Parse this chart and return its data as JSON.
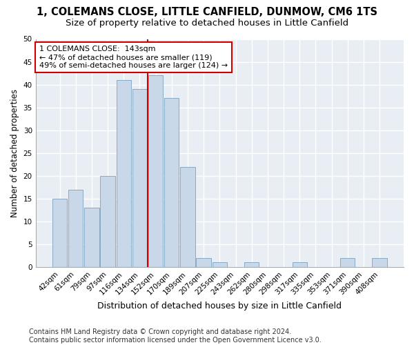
{
  "title": "1, COLEMANS CLOSE, LITTLE CANFIELD, DUNMOW, CM6 1TS",
  "subtitle": "Size of property relative to detached houses in Little Canfield",
  "xlabel": "Distribution of detached houses by size in Little Canfield",
  "ylabel": "Number of detached properties",
  "categories": [
    "42sqm",
    "61sqm",
    "79sqm",
    "97sqm",
    "116sqm",
    "134sqm",
    "152sqm",
    "170sqm",
    "189sqm",
    "207sqm",
    "225sqm",
    "243sqm",
    "262sqm",
    "280sqm",
    "298sqm",
    "317sqm",
    "335sqm",
    "353sqm",
    "371sqm",
    "390sqm",
    "408sqm"
  ],
  "values": [
    15,
    17,
    13,
    20,
    41,
    39,
    42,
    37,
    22,
    2,
    1,
    0,
    1,
    0,
    0,
    1,
    0,
    0,
    2,
    0,
    2
  ],
  "bar_color": "#c8d8e8",
  "bar_edge_color": "#7aa0bc",
  "annotation_text": "1 COLEMANS CLOSE:  143sqm\n← 47% of detached houses are smaller (119)\n49% of semi-detached houses are larger (124) →",
  "annotation_box_color": "#ffffff",
  "annotation_box_edge_color": "#cc0000",
  "vline_color": "#cc0000",
  "footer_line1": "Contains HM Land Registry data © Crown copyright and database right 2024.",
  "footer_line2": "Contains public sector information licensed under the Open Government Licence v3.0.",
  "ylim": [
    0,
    50
  ],
  "yticks": [
    0,
    5,
    10,
    15,
    20,
    25,
    30,
    35,
    40,
    45,
    50
  ],
  "bg_color": "#e8eef4",
  "grid_color": "#ffffff",
  "title_fontsize": 10.5,
  "subtitle_fontsize": 9.5,
  "xlabel_fontsize": 9,
  "ylabel_fontsize": 8.5,
  "tick_fontsize": 7.5,
  "annotation_fontsize": 8,
  "footer_fontsize": 7
}
